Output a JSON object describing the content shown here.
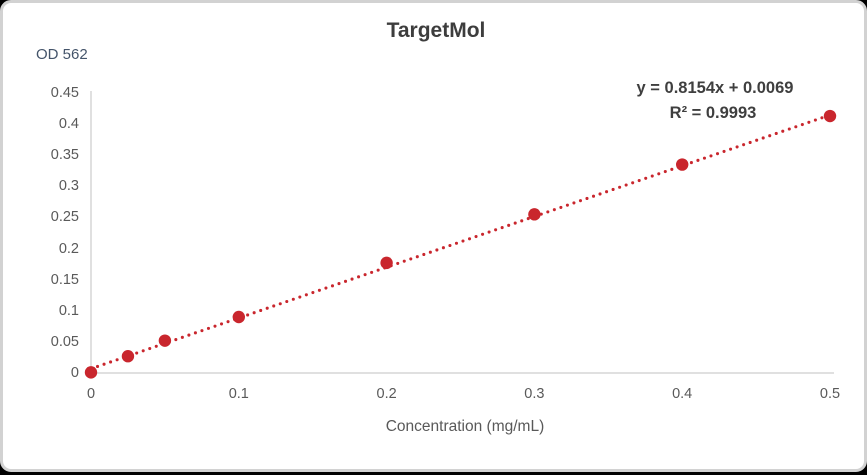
{
  "panel": {
    "background": "#ffffff",
    "border_color": "#d2d2d2",
    "outside_background": "#000000"
  },
  "chart_data": {
    "type": "scatter",
    "title": "TargetMol",
    "y_axis_title": "OD 562",
    "xlabel": "Concentration (mg/mL)",
    "x": [
      0,
      0.025,
      0.05,
      0.1,
      0.2,
      0.3,
      0.4,
      0.5
    ],
    "y": [
      0.001,
      0.027,
      0.052,
      0.09,
      0.177,
      0.255,
      0.335,
      0.413
    ],
    "trendline": {
      "slope": 0.8154,
      "intercept": 0.0069,
      "style": "dotted",
      "equation_label": "y = 0.8154x + 0.0069",
      "r2_label": "R² = 0.9993"
    },
    "xlim": [
      0,
      0.5
    ],
    "ylim": [
      0,
      0.45
    ],
    "x_ticks": [
      "0",
      "0.1",
      "0.2",
      "0.3",
      "0.4",
      "0.5"
    ],
    "y_ticks": [
      "0",
      "0.05",
      "0.1",
      "0.15",
      "0.2",
      "0.25",
      "0.3",
      "0.35",
      "0.4",
      "0.45"
    ],
    "grid": false,
    "legend": "none",
    "colors": {
      "series": "#c9262d",
      "axis_line": "#d6d6d6",
      "tick_text": "#595959",
      "title_text": "#3d3d3d",
      "equation_text": "#3f3f3f",
      "y_axis_title_text": "#44546a",
      "x_axis_title_text": "#595959"
    }
  }
}
